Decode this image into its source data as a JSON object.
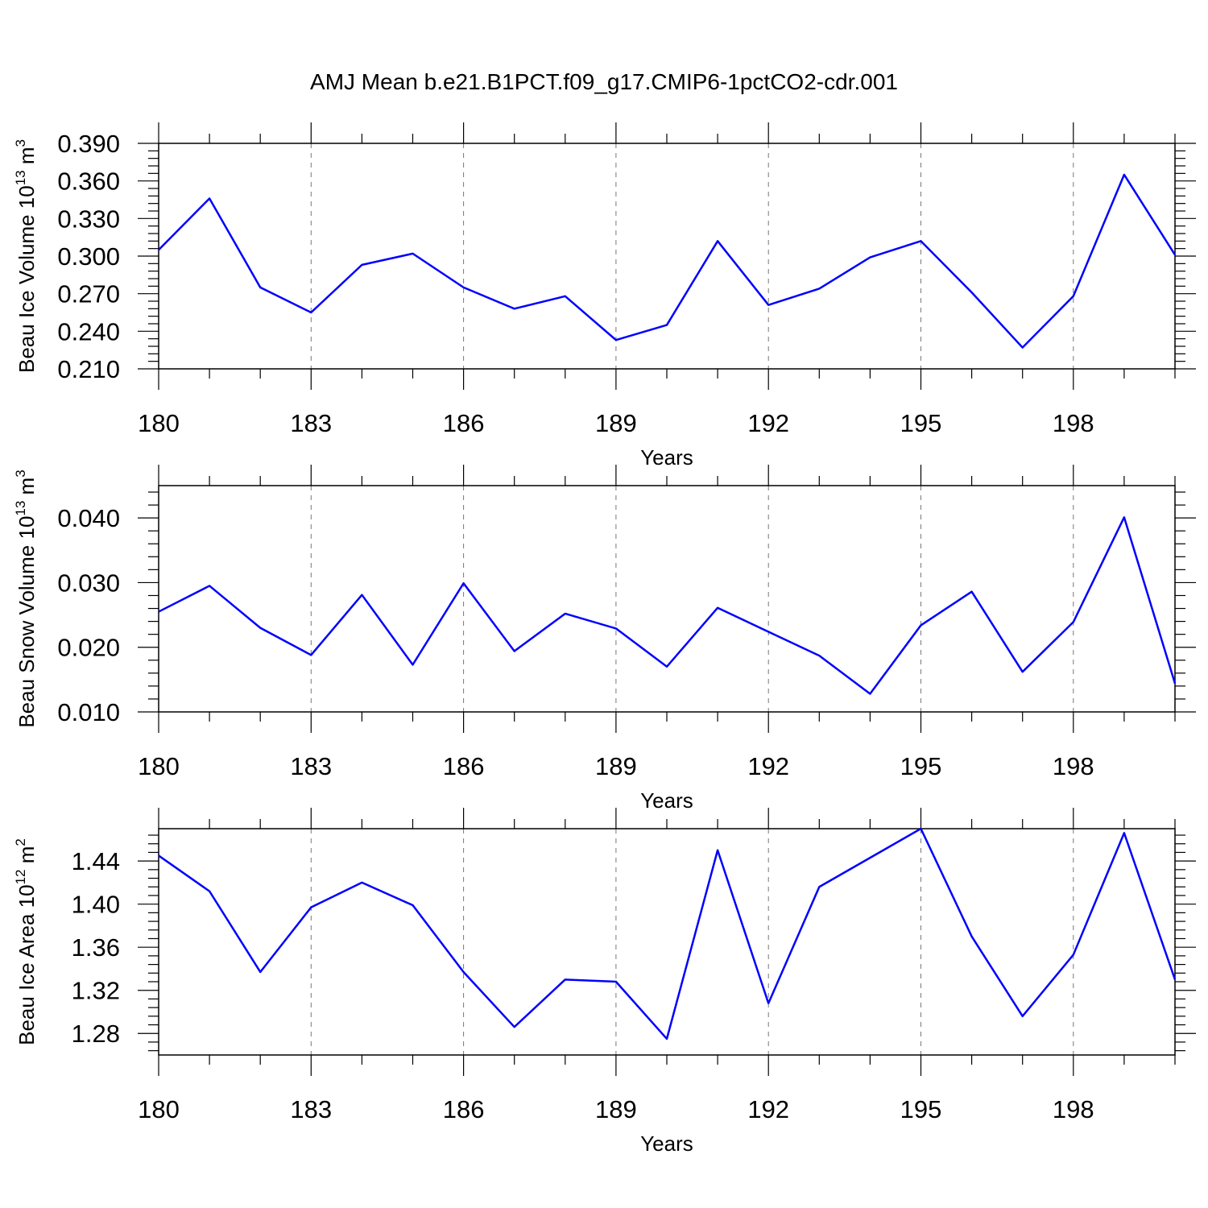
{
  "title": "AMJ Mean b.e21.B1PCT.f09_g17.CMIP6-1pctCO2-cdr.001",
  "chart_data": [
    {
      "type": "line",
      "xlabel": "Years",
      "ylabel": {
        "prefix": "Beau Ice Volume 10",
        "exponent": "13",
        "unit": " m",
        "unit_exp": "3"
      },
      "x": [
        180,
        181,
        182,
        183,
        184,
        185,
        186,
        187,
        188,
        189,
        190,
        191,
        192,
        193,
        194,
        195,
        196,
        197,
        198,
        199,
        200
      ],
      "values": [
        0.305,
        0.346,
        0.275,
        0.255,
        0.293,
        0.302,
        0.275,
        0.258,
        0.268,
        0.233,
        0.245,
        0.312,
        0.261,
        0.274,
        0.299,
        0.312,
        0.271,
        0.227,
        0.268,
        0.365,
        0.301
      ],
      "xlim": [
        180,
        200
      ],
      "ylim": [
        0.21,
        0.39
      ],
      "y_ticks": [
        "0.210",
        "0.240",
        "0.270",
        "0.300",
        "0.330",
        "0.360",
        "0.390"
      ],
      "x_ticks": [
        "180",
        "183",
        "186",
        "189",
        "192",
        "195",
        "198"
      ],
      "line_color": "#0000ff"
    },
    {
      "type": "line",
      "xlabel": "Years",
      "ylabel": {
        "prefix": "Beau Snow Volume 10",
        "exponent": "13",
        "unit": " m",
        "unit_exp": "3"
      },
      "x": [
        180,
        181,
        182,
        183,
        184,
        185,
        186,
        187,
        188,
        189,
        190,
        191,
        192,
        193,
        194,
        195,
        196,
        197,
        198,
        199,
        200
      ],
      "values": [
        0.0255,
        0.0295,
        0.023,
        0.0188,
        0.0281,
        0.0173,
        0.0299,
        0.0194,
        0.0252,
        0.0229,
        0.017,
        0.0261,
        0.0224,
        0.0187,
        0.0128,
        0.0234,
        0.0286,
        0.0162,
        0.0239,
        0.0401,
        0.0144
      ],
      "xlim": [
        180,
        200
      ],
      "ylim": [
        0.01,
        0.045
      ],
      "y_ticks": [
        "0.010",
        "0.020",
        "0.030",
        "0.040"
      ],
      "x_ticks": [
        "180",
        "183",
        "186",
        "189",
        "192",
        "195",
        "198"
      ],
      "line_color": "#0000ff"
    },
    {
      "type": "line",
      "xlabel": "Years",
      "ylabel": {
        "prefix": "Beau Ice Area 10",
        "exponent": "12",
        "unit": " m",
        "unit_exp": "2"
      },
      "x": [
        180,
        181,
        182,
        183,
        184,
        185,
        186,
        187,
        188,
        189,
        190,
        191,
        192,
        193,
        194,
        195,
        196,
        197,
        198,
        199,
        200
      ],
      "values": [
        1.445,
        1.412,
        1.337,
        1.397,
        1.42,
        1.399,
        1.337,
        1.286,
        1.33,
        1.328,
        1.275,
        1.45,
        1.308,
        1.416,
        1.443,
        1.47,
        1.37,
        1.296,
        1.353,
        1.466,
        1.33
      ],
      "xlim": [
        180,
        200
      ],
      "ylim": [
        1.26,
        1.47
      ],
      "y_ticks": [
        "1.28",
        "1.32",
        "1.36",
        "1.40",
        "1.44"
      ],
      "x_ticks": [
        "180",
        "183",
        "186",
        "189",
        "192",
        "195",
        "198"
      ],
      "line_color": "#0000ff"
    }
  ]
}
